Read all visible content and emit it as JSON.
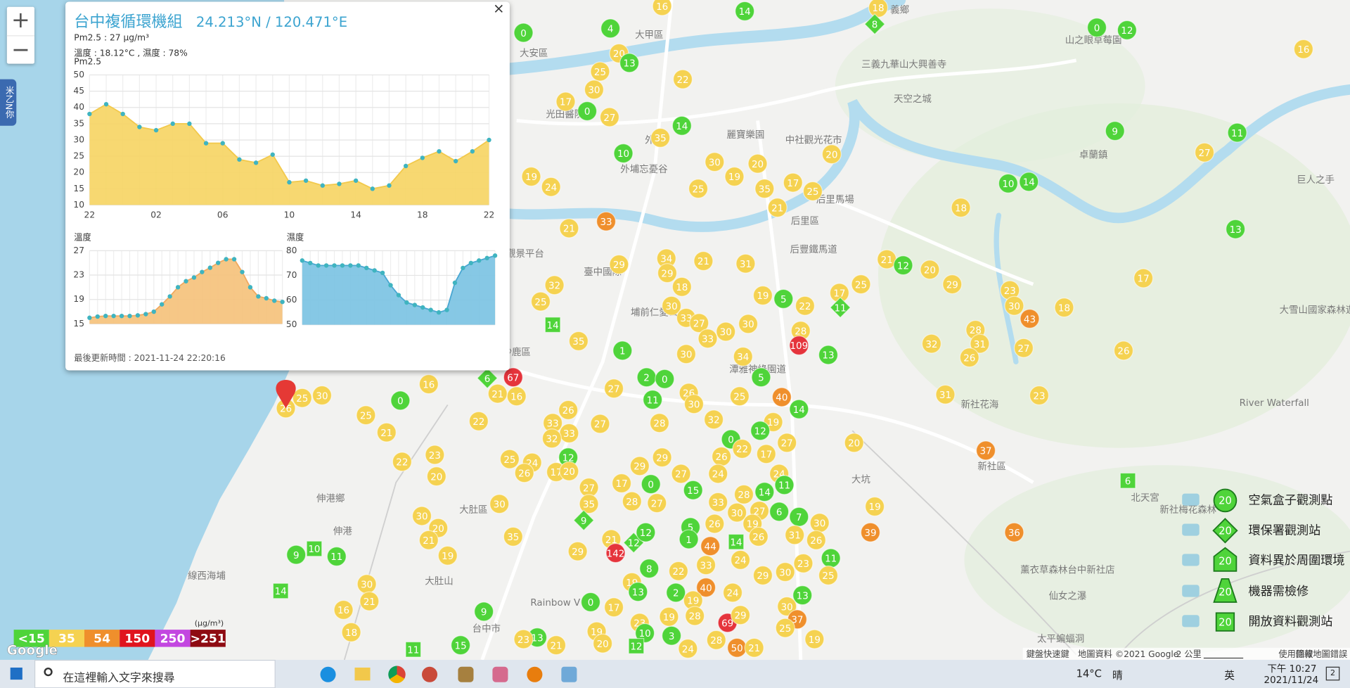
{
  "chart_data": [
    {
      "type": "area",
      "title": "Pm2.5",
      "categories": [
        "22",
        null,
        null,
        null,
        "02",
        null,
        null,
        null,
        "06",
        null,
        null,
        null,
        "10",
        null,
        null,
        null,
        "14",
        null,
        null,
        null,
        "18",
        null,
        null,
        null,
        "22"
      ],
      "values": [
        38,
        41,
        38,
        34,
        33,
        35,
        35,
        29,
        29,
        24,
        23,
        25.5,
        17,
        17.5,
        16,
        16.5,
        17.5,
        15,
        16,
        22,
        24.5,
        26.5,
        23.5,
        26.5,
        30
      ],
      "ylim": [
        10,
        50
      ],
      "yticks": [
        10,
        15,
        20,
        25,
        30,
        35,
        40,
        45,
        50
      ],
      "color": "#f6d565",
      "line_color": "#f2c94c",
      "marker_color": "#3fb4c0",
      "grid": true
    },
    {
      "type": "area",
      "title": "溫度",
      "values": [
        16,
        16.2,
        16.3,
        16.3,
        16.3,
        16.3,
        16.4,
        16.6,
        17,
        18.2,
        19.5,
        21,
        22,
        22.6,
        23.5,
        24.2,
        25,
        25.6,
        25.6,
        23.5,
        21,
        19.5,
        19.2,
        18.8,
        18.6
      ],
      "ylim": [
        15,
        27
      ],
      "yticks": [
        15,
        19,
        23,
        27
      ],
      "color": "#f5c27c",
      "line_color": "#f0a960",
      "marker_color": "#3fb4c0",
      "grid": true
    },
    {
      "type": "area",
      "title": "濕度",
      "values": [
        76,
        75,
        74,
        74,
        74,
        74,
        74,
        74,
        73,
        72,
        71,
        66,
        62,
        59,
        58,
        57,
        56,
        55,
        56,
        67,
        73,
        75,
        76,
        77,
        78
      ],
      "ylim": [
        50,
        80
      ],
      "yticks": [
        50,
        60,
        70,
        80
      ],
      "color": "#7cc3e3",
      "line_color": "#4aa7d2",
      "marker_color": "#3fb4c0",
      "grid": true
    }
  ],
  "popup": {
    "title": "台中複循環機組",
    "coords": "24.213°N / 120.471°E",
    "pm25": "Pm2.5 : 27 μg/m³",
    "weather": "溫度 : 18.12°C , 濕度 : 78%",
    "updated": "最後更新時間 : 2021-11-24 22:20:16",
    "close": "×"
  },
  "zoom": {
    "in": "+",
    "out": "−"
  },
  "side_tab": "米乙N你",
  "map": {
    "markers": [
      {
        "value": 0,
        "color": "#4fd43a"
      },
      {
        "value": 4,
        "color": "#4fd43a"
      },
      {
        "value": 16,
        "color": "#f5d251"
      },
      {
        "value": 14,
        "color": "#4fd43a"
      },
      {
        "value": 18,
        "color": "#f5d251"
      },
      {
        "value": 8,
        "color": "#4fd43a",
        "shape": "diamond"
      },
      {
        "value": 0,
        "color": "#4fd43a"
      },
      {
        "value": 12,
        "color": "#4fd43a"
      },
      {
        "value": 16,
        "color": "#f5d251"
      },
      {
        "value": 20,
        "color": "#f5d251"
      },
      {
        "value": 13,
        "color": "#4fd43a"
      },
      {
        "value": 25,
        "color": "#f5d251"
      },
      {
        "value": 30,
        "color": "#f5d251"
      },
      {
        "value": 22,
        "color": "#f5d251"
      },
      {
        "value": 17,
        "color": "#f5d251"
      },
      {
        "value": 0,
        "color": "#4fd43a"
      },
      {
        "value": 27,
        "color": "#f5d251"
      },
      {
        "value": 14,
        "color": "#4fd43a"
      },
      {
        "value": 35,
        "color": "#f5d251"
      },
      {
        "value": 9,
        "color": "#4fd43a"
      },
      {
        "value": 11,
        "color": "#4fd43a"
      },
      {
        "value": 10,
        "color": "#4fd43a"
      },
      {
        "value": 30,
        "color": "#f5d251"
      },
      {
        "value": 20,
        "color": "#f5d251"
      },
      {
        "value": 20,
        "color": "#f5d251"
      },
      {
        "value": 27,
        "color": "#f5d251"
      },
      {
        "value": 19,
        "color": "#f5d251"
      },
      {
        "value": 19,
        "color": "#f5d251"
      },
      {
        "value": 24,
        "color": "#f5d251"
      },
      {
        "value": 25,
        "color": "#f5d251"
      },
      {
        "value": 35,
        "color": "#f5d251"
      },
      {
        "value": 17,
        "color": "#f5d251"
      },
      {
        "value": 25,
        "color": "#f5d251"
      },
      {
        "value": 21,
        "color": "#f5d251"
      },
      {
        "value": 10,
        "color": "#4fd43a"
      },
      {
        "value": 14,
        "color": "#4fd43a"
      },
      {
        "value": 18,
        "color": "#f5d251"
      },
      {
        "value": 33,
        "color": "#ef8f2c"
      },
      {
        "value": 21,
        "color": "#f5d251"
      },
      {
        "value": 13,
        "color": "#4fd43a"
      },
      {
        "value": 34,
        "color": "#f5d251"
      },
      {
        "value": 29,
        "color": "#f5d251"
      },
      {
        "value": 21,
        "color": "#f5d251"
      },
      {
        "value": 31,
        "color": "#f5d251"
      },
      {
        "value": 21,
        "color": "#f5d251"
      },
      {
        "value": 12,
        "color": "#4fd43a"
      },
      {
        "value": 20,
        "color": "#f5d251"
      },
      {
        "value": 29,
        "color": "#f5d251"
      },
      {
        "value": 25,
        "color": "#f5d251"
      },
      {
        "value": 17,
        "color": "#f5d251"
      },
      {
        "value": 32,
        "color": "#f5d251"
      },
      {
        "value": 29,
        "color": "#f5d251"
      },
      {
        "value": 18,
        "color": "#f5d251"
      },
      {
        "value": 25,
        "color": "#f5d251"
      },
      {
        "value": 19,
        "color": "#f5d251"
      },
      {
        "value": 5,
        "color": "#4fd43a"
      },
      {
        "value": 22,
        "color": "#f5d251"
      },
      {
        "value": 17,
        "color": "#f5d251"
      },
      {
        "value": 11,
        "color": "#4fd43a",
        "shape": "diamond"
      },
      {
        "value": 23,
        "color": "#f5d251"
      },
      {
        "value": 30,
        "color": "#f5d251"
      },
      {
        "value": 43,
        "color": "#ef8f2c"
      },
      {
        "value": 18,
        "color": "#f5d251"
      },
      {
        "value": 30,
        "color": "#f5d251"
      },
      {
        "value": 33,
        "color": "#f5d251"
      },
      {
        "value": 27,
        "color": "#f5d251"
      },
      {
        "value": 30,
        "color": "#f5d251"
      },
      {
        "value": 30,
        "color": "#f5d251"
      },
      {
        "value": 28,
        "color": "#f5d251"
      },
      {
        "value": 109,
        "color": "#e5343c"
      },
      {
        "value": 14,
        "color": "#4fd43a",
        "shape": "square"
      },
      {
        "value": 35,
        "color": "#f5d251"
      },
      {
        "value": 33,
        "color": "#f5d251"
      },
      {
        "value": 28,
        "color": "#f5d251"
      },
      {
        "value": 31,
        "color": "#f5d251"
      },
      {
        "value": 32,
        "color": "#f5d251"
      },
      {
        "value": 26,
        "color": "#f5d251"
      },
      {
        "value": 26,
        "color": "#f5d251"
      },
      {
        "value": 27,
        "color": "#f5d251"
      },
      {
        "value": 13,
        "color": "#4fd43a"
      },
      {
        "value": 1,
        "color": "#4fd43a"
      },
      {
        "value": 30,
        "color": "#f5d251"
      },
      {
        "value": 34,
        "color": "#f5d251"
      },
      {
        "value": 5,
        "color": "#4fd43a"
      },
      {
        "value": 6,
        "color": "#4fd43a",
        "shape": "diamond"
      },
      {
        "value": 67,
        "color": "#e5343c"
      },
      {
        "value": 16,
        "color": "#f5d251"
      },
      {
        "value": 2,
        "color": "#4fd43a"
      },
      {
        "value": 0,
        "color": "#4fd43a"
      },
      {
        "value": 27,
        "color": "#f5d251"
      },
      {
        "value": 11,
        "color": "#4fd43a"
      },
      {
        "value": 26,
        "color": "#f5d251"
      },
      {
        "value": 30,
        "color": "#f5d251"
      },
      {
        "value": 25,
        "color": "#f5d251"
      },
      {
        "value": 40,
        "color": "#ef8f2c"
      },
      {
        "value": 14,
        "color": "#4fd43a"
      },
      {
        "value": 31,
        "color": "#f5d251"
      },
      {
        "value": 23,
        "color": "#f5d251"
      },
      {
        "value": 0,
        "color": "#4fd43a"
      },
      {
        "value": 30,
        "color": "#f5d251"
      },
      {
        "value": 25,
        "color": "#f5d251"
      },
      {
        "value": 25,
        "color": "#f5d251"
      },
      {
        "value": 21,
        "color": "#f5d251"
      },
      {
        "value": 16,
        "color": "#f5d251"
      },
      {
        "value": 26,
        "color": "#f5d251"
      },
      {
        "value": 22,
        "color": "#f5d251"
      },
      {
        "value": 21,
        "color": "#f5d251"
      },
      {
        "value": 27,
        "color": "#f5d251"
      },
      {
        "value": 28,
        "color": "#f5d251"
      },
      {
        "value": 32,
        "color": "#f5d251"
      },
      {
        "value": 19,
        "color": "#f5d251"
      },
      {
        "value": 12,
        "color": "#4fd43a"
      },
      {
        "value": 27,
        "color": "#f5d251"
      },
      {
        "value": 20,
        "color": "#f5d251"
      },
      {
        "value": 37,
        "color": "#ef8f2c"
      },
      {
        "value": 0,
        "color": "#4fd43a"
      },
      {
        "value": 33,
        "color": "#f5d251"
      },
      {
        "value": 33,
        "color": "#f5d251"
      },
      {
        "value": 32,
        "color": "#f5d251"
      },
      {
        "value": 23,
        "color": "#f5d251"
      },
      {
        "value": 22,
        "color": "#f5d251"
      },
      {
        "value": 20,
        "color": "#f5d251"
      },
      {
        "value": 24,
        "color": "#f5d251"
      },
      {
        "value": 25,
        "color": "#f5d251"
      },
      {
        "value": 12,
        "color": "#4fd43a"
      },
      {
        "value": 26,
        "color": "#f5d251"
      },
      {
        "value": 17,
        "color": "#f5d251"
      },
      {
        "value": 20,
        "color": "#f5d251"
      },
      {
        "value": 29,
        "color": "#f5d251"
      },
      {
        "value": 29,
        "color": "#f5d251"
      },
      {
        "value": 26,
        "color": "#f5d251"
      },
      {
        "value": 22,
        "color": "#f5d251"
      },
      {
        "value": 17,
        "color": "#f5d251"
      },
      {
        "value": 24,
        "color": "#f5d251"
      },
      {
        "value": 24,
        "color": "#f5d251"
      },
      {
        "value": 27,
        "color": "#f5d251"
      },
      {
        "value": 17,
        "color": "#f5d251"
      },
      {
        "value": 0,
        "color": "#4fd43a"
      },
      {
        "value": 27,
        "color": "#f5d251"
      },
      {
        "value": 15,
        "color": "#4fd43a"
      },
      {
        "value": 28,
        "color": "#f5d251"
      },
      {
        "value": 14,
        "color": "#4fd43a"
      },
      {
        "value": 11,
        "color": "#4fd43a"
      },
      {
        "value": 35,
        "color": "#f5d251"
      },
      {
        "value": 30,
        "color": "#f5d251"
      },
      {
        "value": 28,
        "color": "#f5d251"
      },
      {
        "value": 27,
        "color": "#f5d251"
      },
      {
        "value": 33,
        "color": "#f5d251"
      },
      {
        "value": 30,
        "color": "#f5d251"
      },
      {
        "value": 27,
        "color": "#f5d251"
      },
      {
        "value": 6,
        "color": "#4fd43a"
      },
      {
        "value": 7,
        "color": "#4fd43a"
      },
      {
        "value": 30,
        "color": "#f5d251"
      },
      {
        "value": 19,
        "color": "#f5d251"
      },
      {
        "value": 9,
        "color": "#4fd43a",
        "shape": "diamond"
      },
      {
        "value": 5,
        "color": "#4fd43a"
      },
      {
        "value": 26,
        "color": "#f5d251"
      },
      {
        "value": 19,
        "color": "#f5d251"
      },
      {
        "value": 30,
        "color": "#f5d251"
      },
      {
        "value": 20,
        "color": "#f5d251"
      },
      {
        "value": 21,
        "color": "#f5d251"
      },
      {
        "value": 35,
        "color": "#f5d251"
      },
      {
        "value": 21,
        "color": "#f5d251"
      },
      {
        "value": 12,
        "color": "#4fd43a",
        "shape": "diamond"
      },
      {
        "value": 12,
        "color": "#4fd43a"
      },
      {
        "value": 1,
        "color": "#4fd43a"
      },
      {
        "value": 44,
        "color": "#ef8f2c"
      },
      {
        "value": 14,
        "color": "#4fd43a",
        "shape": "square"
      },
      {
        "value": 26,
        "color": "#f5d251"
      },
      {
        "value": 31,
        "color": "#f5d251"
      },
      {
        "value": 26,
        "color": "#f5d251"
      },
      {
        "value": 39,
        "color": "#ef8f2c"
      },
      {
        "value": 36,
        "color": "#ef8f2c"
      },
      {
        "value": 142,
        "color": "#e5343c"
      },
      {
        "value": 29,
        "color": "#f5d251"
      },
      {
        "value": 19,
        "color": "#f5d251"
      },
      {
        "value": 8,
        "color": "#4fd43a"
      },
      {
        "value": 19,
        "color": "#f5d251"
      },
      {
        "value": 22,
        "color": "#f5d251"
      },
      {
        "value": 2,
        "color": "#4fd43a"
      },
      {
        "value": 33,
        "color": "#f5d251"
      },
      {
        "value": 24,
        "color": "#f5d251"
      },
      {
        "value": 29,
        "color": "#f5d251"
      },
      {
        "value": 30,
        "color": "#f5d251"
      },
      {
        "value": 23,
        "color": "#f5d251"
      },
      {
        "value": 11,
        "color": "#4fd43a"
      },
      {
        "value": 25,
        "color": "#f5d251"
      },
      {
        "value": 9,
        "color": "#4fd43a"
      },
      {
        "value": 10,
        "color": "#4fd43a",
        "shape": "square"
      },
      {
        "value": 11,
        "color": "#4fd43a"
      },
      {
        "value": 30,
        "color": "#f5d251"
      },
      {
        "value": 21,
        "color": "#f5d251"
      },
      {
        "value": 16,
        "color": "#f5d251"
      },
      {
        "value": 14,
        "color": "#4fd43a",
        "shape": "square"
      },
      {
        "value": 18,
        "color": "#f5d251"
      },
      {
        "value": 0,
        "color": "#4fd43a"
      },
      {
        "value": 17,
        "color": "#f5d251"
      },
      {
        "value": 13,
        "color": "#4fd43a"
      },
      {
        "value": 40,
        "color": "#ef8f2c"
      },
      {
        "value": 24,
        "color": "#f5d251"
      },
      {
        "value": 13,
        "color": "#4fd43a"
      },
      {
        "value": 30,
        "color": "#f5d251"
      },
      {
        "value": 19,
        "color": "#f5d251"
      },
      {
        "value": 28,
        "color": "#f5d251"
      },
      {
        "value": 19,
        "color": "#f5d251"
      },
      {
        "value": 23,
        "color": "#f5d251"
      },
      {
        "value": 69,
        "color": "#e5343c"
      },
      {
        "value": 29,
        "color": "#f5d251"
      },
      {
        "value": 37,
        "color": "#ef8f2c"
      },
      {
        "value": 25,
        "color": "#f5d251"
      },
      {
        "value": 19,
        "color": "#f5d251"
      },
      {
        "value": 9,
        "color": "#4fd43a"
      },
      {
        "value": 13,
        "color": "#4fd43a"
      },
      {
        "value": 19,
        "color": "#f5d251"
      },
      {
        "value": 10,
        "color": "#4fd43a"
      },
      {
        "value": 3,
        "color": "#4fd43a"
      },
      {
        "value": 12,
        "color": "#4fd43a",
        "shape": "square"
      },
      {
        "value": 23,
        "color": "#f5d251"
      },
      {
        "value": 21,
        "color": "#f5d251"
      },
      {
        "value": 20,
        "color": "#f5d251"
      },
      {
        "value": 24,
        "color": "#f5d251"
      },
      {
        "value": 28,
        "color": "#f5d251"
      },
      {
        "value": 50,
        "color": "#ef8f2c"
      },
      {
        "value": 21,
        "color": "#f5d251"
      },
      {
        "value": 15,
        "color": "#4fd43a"
      },
      {
        "value": 11,
        "color": "#4fd43a",
        "shape": "square"
      },
      {
        "value": 6,
        "color": "#4fd43a",
        "shape": "square"
      },
      {
        "value": 26,
        "color": "#f5d251"
      }
    ],
    "places": [
      "大甲區",
      "大安區",
      "外埔",
      "光田醫院",
      "麗寶樂園",
      "中社觀光花市",
      "外埔忘憂谷",
      "后里區",
      "后里馬場",
      "后豐鐵馬道",
      "天空之城",
      "三義九華山大興善寺",
      "山之眼草莓園",
      "卓蘭鎮",
      "巨人之手",
      "大雪山國家森林遊",
      "臺中國際",
      "觀景平台",
      "埔前仁愛公",
      "沙鹿區",
      "潭雅神綠園道",
      "新社花海",
      "新社區",
      "River Waterfall",
      "北天宮",
      "新社梅花森林",
      "薰衣草森林台中新社店",
      "仙女之瀑",
      "太平蝙蝠洞",
      "伸港鄉",
      "伸港",
      "線西海埔",
      "大肚區",
      "大肚山",
      "Rainbow V",
      "台中市",
      "義鄉",
      "大坑"
    ],
    "google": "Google",
    "footer": [
      "鍵盤快速鍵",
      "地圖資料 ©2021 Google",
      "2 公里",
      "使用條款",
      "回報地圖錯誤"
    ]
  },
  "scale": {
    "unit": "(μg/m³)",
    "levels": [
      {
        "label": "<15",
        "color": "#4fd43a"
      },
      {
        "label": "35",
        "color": "#f5d251"
      },
      {
        "label": "54",
        "color": "#ef8f2c"
      },
      {
        "label": "150",
        "color": "#e0141e"
      },
      {
        "label": "250",
        "color": "#c347e0"
      },
      {
        "label": ">251",
        "color": "#8e0b12"
      }
    ]
  },
  "legend": [
    {
      "name": "空氣盒子觀測點",
      "value": 20
    },
    {
      "name": "環保署觀測站",
      "value": 20
    },
    {
      "name": "資料異於周圍環境",
      "value": 20
    },
    {
      "name": "機器需檢修",
      "value": 20
    },
    {
      "name": "開放資料觀測站",
      "value": 20
    }
  ],
  "taskbar": {
    "search": "在這裡輸入文字來搜尋",
    "temp": "14°C",
    "sky": "晴",
    "ime": "英",
    "time": "下午 10:27",
    "date": "2021/11/24",
    "badge": "2"
  }
}
